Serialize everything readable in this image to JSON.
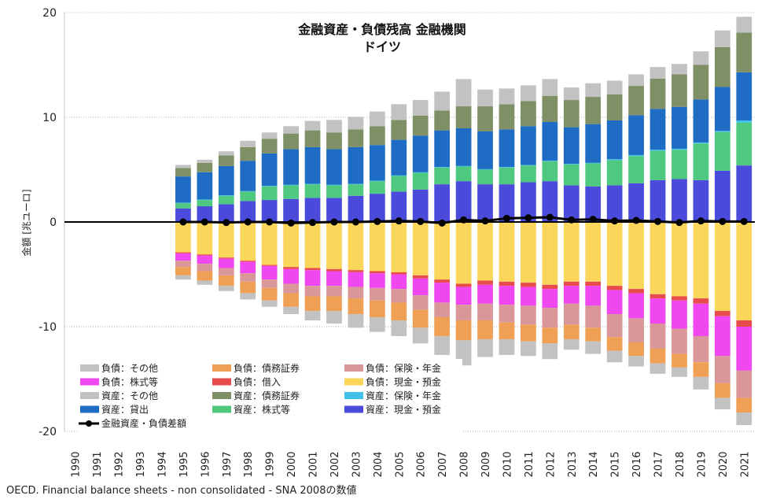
{
  "chart_data": {
    "type": "bar",
    "title": "金融資産・負債残高 金融機関",
    "subtitle": "ドイツ",
    "xlabel": "",
    "ylabel": "金額 [兆ユーロ]",
    "ylim": [
      -20,
      20
    ],
    "yticks": [
      20,
      10,
      0,
      -10,
      -20
    ],
    "categories": [
      "1990",
      "1991",
      "1992",
      "1993",
      "1994",
      "1995",
      "1996",
      "1997",
      "1998",
      "1999",
      "2000",
      "2001",
      "2002",
      "2003",
      "2004",
      "2005",
      "2006",
      "2007",
      "2008",
      "2009",
      "2010",
      "2011",
      "2012",
      "2013",
      "2014",
      "2015",
      "2016",
      "2017",
      "2018",
      "2019",
      "2020",
      "2021"
    ],
    "stacked": true,
    "grid": "horizontal-dotted",
    "legend_position": "bottom-left",
    "series": [
      {
        "name": "資産：現金・預金",
        "color": "#4b4bdb",
        "side": "asset",
        "values": [
          null,
          null,
          null,
          null,
          null,
          1.3,
          1.5,
          1.7,
          2.0,
          2.1,
          2.2,
          2.3,
          2.3,
          2.5,
          2.7,
          2.9,
          3.1,
          3.6,
          3.9,
          3.6,
          3.6,
          3.8,
          3.9,
          3.5,
          3.4,
          3.5,
          3.7,
          4.0,
          4.1,
          4.0,
          4.9,
          5.4
        ]
      },
      {
        "name": "資産：株式等",
        "color": "#4ec97f",
        "side": "asset",
        "values": [
          null,
          null,
          null,
          null,
          null,
          0.5,
          0.6,
          0.8,
          0.9,
          1.3,
          1.3,
          1.3,
          1.2,
          1.1,
          1.2,
          1.5,
          1.6,
          1.6,
          1.4,
          1.4,
          1.6,
          1.6,
          1.9,
          2.0,
          2.2,
          2.4,
          2.6,
          2.8,
          2.8,
          3.5,
          3.7,
          4.1
        ]
      },
      {
        "name": "資産：保険・年金",
        "color": "#3fc1e8",
        "side": "asset",
        "values": [
          null,
          null,
          null,
          null,
          null,
          0.05,
          0.05,
          0.05,
          0.05,
          0.05,
          0.05,
          0.05,
          0.05,
          0.05,
          0.05,
          0.05,
          0.05,
          0.05,
          0.05,
          0.05,
          0.05,
          0.05,
          0.05,
          0.05,
          0.05,
          0.1,
          0.1,
          0.1,
          0.1,
          0.1,
          0.1,
          0.2
        ]
      },
      {
        "name": "資産：貸出",
        "color": "#1f6cc4",
        "side": "asset",
        "values": [
          null,
          null,
          null,
          null,
          null,
          2.5,
          2.6,
          2.8,
          2.9,
          3.1,
          3.4,
          3.5,
          3.4,
          3.5,
          3.4,
          3.4,
          3.5,
          3.5,
          3.6,
          3.6,
          3.6,
          3.7,
          3.7,
          3.5,
          3.7,
          3.7,
          3.8,
          3.9,
          4.0,
          4.1,
          4.2,
          4.6
        ]
      },
      {
        "name": "資産：債務証券",
        "color": "#7f8f66",
        "side": "asset",
        "values": [
          null,
          null,
          null,
          null,
          null,
          0.8,
          0.9,
          1.0,
          1.3,
          1.4,
          1.5,
          1.6,
          1.6,
          1.7,
          1.8,
          1.9,
          1.9,
          1.9,
          2.1,
          2.4,
          2.4,
          2.4,
          2.5,
          2.6,
          2.6,
          2.5,
          2.8,
          2.9,
          3.1,
          3.3,
          3.8,
          3.8
        ]
      },
      {
        "name": "資産：その他",
        "color": "#c2c2c2",
        "side": "asset",
        "values": [
          null,
          null,
          null,
          null,
          null,
          0.3,
          0.3,
          0.4,
          0.6,
          0.6,
          0.7,
          0.9,
          1.2,
          1.2,
          1.4,
          1.5,
          1.5,
          1.8,
          2.6,
          1.6,
          1.5,
          1.5,
          1.6,
          1.2,
          1.3,
          1.3,
          1.1,
          1.1,
          1.0,
          1.3,
          1.6,
          1.5
        ]
      },
      {
        "name": "負債：現金・預金",
        "color": "#fad65a",
        "side": "liability",
        "values": [
          null,
          null,
          null,
          null,
          null,
          -2.9,
          -3.1,
          -3.4,
          -3.7,
          -4.1,
          -4.3,
          -4.4,
          -4.5,
          -4.6,
          -4.7,
          -4.8,
          -5.1,
          -5.5,
          -5.9,
          -5.6,
          -5.7,
          -5.8,
          -6.0,
          -5.7,
          -5.7,
          -6.1,
          -6.4,
          -6.9,
          -7.1,
          -7.3,
          -8.5,
          -9.4
        ]
      },
      {
        "name": "負債：借入",
        "color": "#e84b4b",
        "side": "liability",
        "values": [
          null,
          null,
          null,
          null,
          null,
          -0.1,
          -0.1,
          -0.1,
          -0.1,
          -0.1,
          -0.2,
          -0.2,
          -0.2,
          -0.2,
          -0.2,
          -0.2,
          -0.3,
          -0.3,
          -0.3,
          -0.4,
          -0.4,
          -0.4,
          -0.4,
          -0.4,
          -0.4,
          -0.4,
          -0.4,
          -0.4,
          -0.4,
          -0.5,
          -0.5,
          -0.6
        ]
      },
      {
        "name": "負債：株式等",
        "color": "#f048f0",
        "side": "liability",
        "values": [
          null,
          null,
          null,
          null,
          null,
          -0.7,
          -0.8,
          -0.9,
          -1.1,
          -1.3,
          -1.4,
          -1.5,
          -1.4,
          -1.4,
          -1.4,
          -1.4,
          -1.6,
          -1.9,
          -1.7,
          -1.8,
          -1.8,
          -1.8,
          -1.8,
          -1.7,
          -1.9,
          -2.3,
          -2.4,
          -2.4,
          -2.7,
          -3.1,
          -3.8,
          -4.2
        ]
      },
      {
        "name": "負債：保険・年金",
        "color": "#d9979a",
        "side": "liability",
        "values": [
          null,
          null,
          null,
          null,
          null,
          -0.6,
          -0.7,
          -0.7,
          -0.8,
          -0.8,
          -0.9,
          -1.0,
          -1.0,
          -1.1,
          -1.2,
          -1.3,
          -1.4,
          -1.4,
          -1.5,
          -1.6,
          -1.7,
          -1.8,
          -1.9,
          -2.0,
          -2.1,
          -2.2,
          -2.3,
          -2.4,
          -2.4,
          -2.5,
          -2.6,
          -2.6
        ]
      },
      {
        "name": "負債：債務証券",
        "color": "#f0a055",
        "side": "liability",
        "values": [
          null,
          null,
          null,
          null,
          null,
          -0.8,
          -0.9,
          -1.0,
          -1.1,
          -1.2,
          -1.3,
          -1.4,
          -1.4,
          -1.5,
          -1.6,
          -1.7,
          -1.7,
          -1.8,
          -1.9,
          -1.8,
          -1.6,
          -1.6,
          -1.5,
          -1.4,
          -1.3,
          -1.3,
          -1.3,
          -1.4,
          -1.3,
          -1.4,
          -1.4,
          -1.4
        ]
      },
      {
        "name": "負債：その他",
        "color": "#c2c2c2",
        "side": "liability",
        "values": [
          null,
          null,
          null,
          null,
          null,
          -0.4,
          -0.4,
          -0.5,
          -0.6,
          -0.6,
          -0.7,
          -0.9,
          -1.2,
          -1.3,
          -1.4,
          -1.5,
          -1.5,
          -1.8,
          -2.4,
          -1.7,
          -1.5,
          -1.4,
          -1.5,
          -1.0,
          -1.2,
          -1.1,
          -1.0,
          -1.0,
          -0.9,
          -1.2,
          -1.1,
          -1.2
        ]
      }
    ],
    "line_series": {
      "name": "金融資産・負債差額",
      "color": "#000000",
      "values": [
        0,
        0,
        0,
        0,
        0,
        0.0,
        0.0,
        -0.05,
        0.0,
        0.0,
        -0.1,
        -0.05,
        0.0,
        0.0,
        0.05,
        0.1,
        0.05,
        -0.1,
        0.2,
        0.1,
        0.35,
        0.4,
        0.45,
        0.2,
        0.25,
        0.1,
        0.15,
        0.05,
        -0.05,
        0.1,
        0.05,
        0.05
      ]
    },
    "legend_order": [
      "負債：その他",
      "負債：債務証券",
      "負債：保険・年金",
      "負債：株式等",
      "負債：借入",
      "負債：現金・預金",
      "資産：その他",
      "資産：債務証券",
      "資産：保険・年金",
      "資産：貸出",
      "資産：株式等",
      "資産：現金・預金"
    ]
  },
  "source_note": "OECD. Financial balance sheets - non consolidated - SNA 2008の数値"
}
